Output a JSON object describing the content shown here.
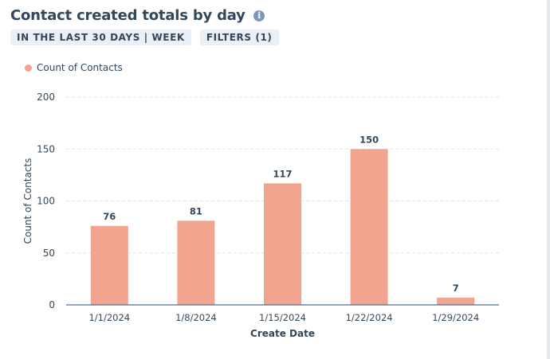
{
  "header": {
    "title": "Contact created totals by day"
  },
  "filters": [
    {
      "label": "IN THE LAST 30 DAYS | WEEK"
    },
    {
      "label": "FILTERS (1)"
    }
  ],
  "colors": {
    "bar": "#f2a58e",
    "text": "#33475b",
    "grid": "#dfe3eb"
  },
  "chart_data": {
    "type": "bar",
    "categories": [
      "1/1/2024",
      "1/8/2024",
      "1/15/2024",
      "1/22/2024",
      "1/29/2024"
    ],
    "series": [
      {
        "name": "Count of Contacts",
        "values": [
          76,
          81,
          117,
          150,
          7
        ]
      }
    ],
    "xlabel": "Create Date",
    "ylabel": "Count of Contacts",
    "ylim": [
      0,
      200
    ],
    "yticks": [
      0,
      50,
      100,
      150,
      200
    ],
    "legend": "top-left",
    "grid": true,
    "data_labels": true
  }
}
